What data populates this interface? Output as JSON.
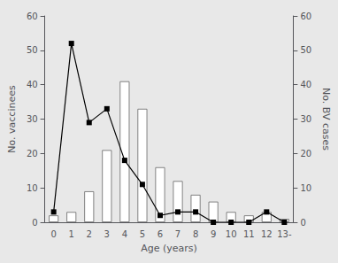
{
  "chart_data": {
    "type": "bar",
    "xlabel": "Age (years)",
    "ylabel": "No. vaccinees",
    "y2label": "No. BV cases",
    "categories": [
      "0",
      "1",
      "2",
      "3",
      "4",
      "5",
      "6",
      "7",
      "8",
      "9",
      "10",
      "11",
      "12",
      "13-"
    ],
    "series": [
      {
        "type": "bar",
        "color": "#ffffff",
        "values": [
          2,
          3,
          9,
          21,
          41,
          33,
          16,
          12,
          8,
          6,
          3,
          2,
          3,
          1
        ]
      },
      {
        "type": "line",
        "axis": "y2",
        "color": "#000000",
        "marker": "square",
        "values": [
          3,
          52,
          29,
          33,
          18,
          11,
          2,
          3,
          3,
          0,
          0,
          0,
          3,
          0
        ]
      }
    ],
    "ylim": [
      0,
      60
    ],
    "yticks": [
      0,
      10,
      20,
      30,
      40,
      50,
      60
    ],
    "y2lim": [
      0,
      60
    ],
    "y2ticks": [
      0,
      10,
      20,
      30,
      40,
      50,
      60
    ],
    "grid": false
  }
}
